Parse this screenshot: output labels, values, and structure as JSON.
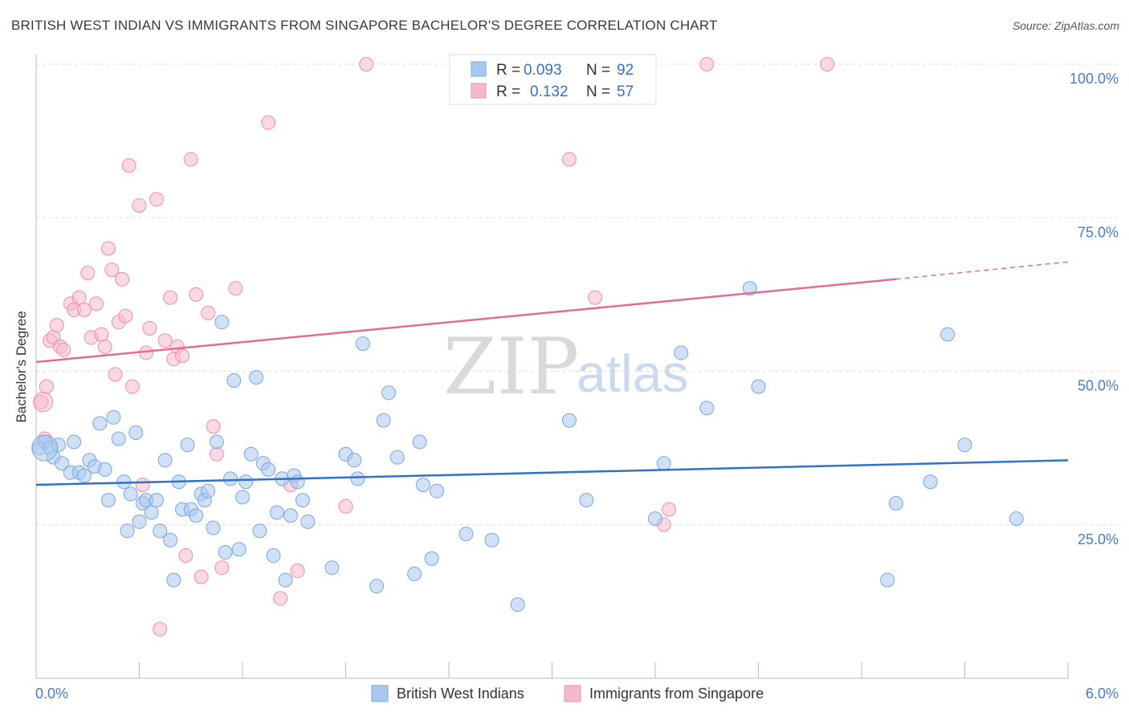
{
  "title": "BRITISH WEST INDIAN VS IMMIGRANTS FROM SINGAPORE BACHELOR'S DEGREE CORRELATION CHART",
  "source": "Source: ZipAtlas.com",
  "watermark": {
    "zip": "ZIP",
    "atlas": "atlas"
  },
  "colors": {
    "blue_fill": "#a9c8ee",
    "blue_stroke": "#7aa7e0",
    "blue_line": "#2f72c8",
    "pink_fill": "#f6b9cc",
    "pink_stroke": "#ee8fae",
    "pink_line": "#e36b94",
    "axis_text": "#4a7cc9",
    "grid": "#dddddd"
  },
  "legend": {
    "r_label": "R =",
    "n_label": "N =",
    "blue_r": "0.093",
    "blue_n": "92",
    "pink_r": "0.132",
    "pink_n": "57"
  },
  "chart_data": {
    "type": "scatter",
    "title": "BRITISH WEST INDIAN VS IMMIGRANTS FROM SINGAPORE BACHELOR'S DEGREE CORRELATION CHART",
    "xlabel": "",
    "ylabel": "Bachelor's Degree",
    "xlim": [
      0,
      6
    ],
    "ylim": [
      0,
      100
    ],
    "x_tick_labels": [
      "0.0%",
      "6.0%"
    ],
    "y_tick_labels": [
      "25.0%",
      "50.0%",
      "75.0%",
      "100.0%"
    ],
    "y_ticks": [
      25,
      50,
      75,
      100
    ],
    "grid": true,
    "legend_position": "top-center",
    "series": [
      {
        "name": "British West Indians",
        "color": "#a9c8ee",
        "trend": {
          "x": [
            0,
            6
          ],
          "y": [
            31.5,
            35.5
          ]
        },
        "points": [
          [
            0.02,
            37.5
          ],
          [
            0.05,
            38.5
          ],
          [
            0.08,
            37.5
          ],
          [
            0.1,
            36.0
          ],
          [
            0.13,
            38.0
          ],
          [
            0.15,
            35.0
          ],
          [
            0.2,
            33.5
          ],
          [
            0.22,
            38.5
          ],
          [
            0.25,
            33.5
          ],
          [
            0.28,
            33.0
          ],
          [
            0.31,
            35.5
          ],
          [
            0.34,
            34.5
          ],
          [
            0.37,
            41.5
          ],
          [
            0.4,
            34.0
          ],
          [
            0.42,
            29.0
          ],
          [
            0.45,
            42.5
          ],
          [
            0.48,
            39.0
          ],
          [
            0.51,
            32.0
          ],
          [
            0.53,
            24.0
          ],
          [
            0.55,
            30.0
          ],
          [
            0.58,
            40.0
          ],
          [
            0.6,
            25.5
          ],
          [
            0.62,
            28.5
          ],
          [
            0.64,
            29.0
          ],
          [
            0.67,
            27.0
          ],
          [
            0.7,
            29.0
          ],
          [
            0.72,
            24.0
          ],
          [
            0.75,
            35.5
          ],
          [
            0.78,
            22.5
          ],
          [
            0.8,
            16.0
          ],
          [
            0.83,
            32.0
          ],
          [
            0.85,
            27.5
          ],
          [
            0.88,
            38.0
          ],
          [
            0.9,
            27.5
          ],
          [
            0.93,
            26.5
          ],
          [
            0.96,
            30.0
          ],
          [
            0.98,
            29.0
          ],
          [
            1.0,
            30.5
          ],
          [
            1.03,
            24.5
          ],
          [
            1.05,
            38.5
          ],
          [
            1.08,
            58.0
          ],
          [
            1.1,
            20.5
          ],
          [
            1.13,
            32.5
          ],
          [
            1.15,
            48.5
          ],
          [
            1.18,
            21.0
          ],
          [
            1.2,
            29.5
          ],
          [
            1.22,
            32.0
          ],
          [
            1.25,
            36.5
          ],
          [
            1.28,
            49.0
          ],
          [
            1.3,
            24.0
          ],
          [
            1.32,
            35.0
          ],
          [
            1.35,
            34.0
          ],
          [
            1.38,
            20.0
          ],
          [
            1.4,
            27.0
          ],
          [
            1.43,
            32.5
          ],
          [
            1.45,
            16.0
          ],
          [
            1.48,
            26.5
          ],
          [
            1.5,
            33.0
          ],
          [
            1.52,
            32.0
          ],
          [
            1.55,
            29.0
          ],
          [
            1.58,
            25.5
          ],
          [
            1.72,
            18.0
          ],
          [
            1.8,
            36.5
          ],
          [
            1.85,
            35.5
          ],
          [
            1.87,
            32.5
          ],
          [
            1.9,
            54.5
          ],
          [
            1.98,
            15.0
          ],
          [
            2.02,
            42.0
          ],
          [
            2.05,
            46.5
          ],
          [
            2.1,
            36.0
          ],
          [
            2.2,
            17.0
          ],
          [
            2.23,
            38.5
          ],
          [
            2.25,
            31.5
          ],
          [
            2.3,
            19.5
          ],
          [
            2.33,
            30.5
          ],
          [
            2.5,
            23.5
          ],
          [
            2.65,
            22.5
          ],
          [
            2.8,
            12.0
          ],
          [
            3.1,
            42.0
          ],
          [
            3.2,
            29.0
          ],
          [
            3.6,
            26.0
          ],
          [
            3.65,
            35.0
          ],
          [
            3.75,
            53.0
          ],
          [
            3.9,
            44.0
          ],
          [
            4.15,
            63.5
          ],
          [
            4.2,
            47.5
          ],
          [
            4.95,
            16.0
          ],
          [
            5.0,
            28.5
          ],
          [
            5.2,
            32.0
          ],
          [
            5.3,
            56.0
          ],
          [
            5.4,
            38.0
          ],
          [
            5.7,
            26.0
          ]
        ]
      },
      {
        "name": "Immigrants from Singapore",
        "color": "#f6b9cc",
        "trend": {
          "x": [
            0,
            5
          ],
          "y": [
            51.5,
            65.0
          ],
          "dashed_to": {
            "x": 6,
            "y": 67.8
          }
        },
        "points": [
          [
            0.03,
            45.0
          ],
          [
            0.06,
            47.5
          ],
          [
            0.08,
            55.0
          ],
          [
            0.1,
            55.5
          ],
          [
            0.12,
            57.5
          ],
          [
            0.14,
            54.0
          ],
          [
            0.16,
            53.5
          ],
          [
            0.2,
            61.0
          ],
          [
            0.22,
            60.0
          ],
          [
            0.25,
            62.0
          ],
          [
            0.28,
            60.0
          ],
          [
            0.3,
            66.0
          ],
          [
            0.32,
            55.5
          ],
          [
            0.35,
            61.0
          ],
          [
            0.38,
            56.0
          ],
          [
            0.4,
            54.0
          ],
          [
            0.42,
            70.0
          ],
          [
            0.44,
            66.5
          ],
          [
            0.46,
            49.5
          ],
          [
            0.48,
            58.0
          ],
          [
            0.5,
            65.0
          ],
          [
            0.52,
            59.0
          ],
          [
            0.54,
            83.5
          ],
          [
            0.56,
            47.5
          ],
          [
            0.6,
            77.0
          ],
          [
            0.62,
            31.5
          ],
          [
            0.64,
            53.0
          ],
          [
            0.66,
            57.0
          ],
          [
            0.7,
            78.0
          ],
          [
            0.72,
            8.0
          ],
          [
            0.75,
            55.0
          ],
          [
            0.78,
            62.0
          ],
          [
            0.8,
            52.0
          ],
          [
            0.82,
            54.0
          ],
          [
            0.85,
            52.5
          ],
          [
            0.87,
            20.0
          ],
          [
            0.9,
            84.5
          ],
          [
            0.93,
            62.5
          ],
          [
            0.96,
            16.5
          ],
          [
            1.0,
            59.5
          ],
          [
            1.03,
            41.0
          ],
          [
            1.05,
            36.5
          ],
          [
            1.08,
            18.0
          ],
          [
            1.16,
            63.5
          ],
          [
            1.35,
            90.5
          ],
          [
            1.42,
            13.0
          ],
          [
            1.48,
            31.5
          ],
          [
            1.52,
            17.5
          ],
          [
            1.8,
            28.0
          ],
          [
            1.92,
            100.0
          ],
          [
            3.1,
            84.5
          ],
          [
            3.25,
            62.0
          ],
          [
            3.65,
            25.0
          ],
          [
            3.68,
            27.5
          ],
          [
            3.9,
            100.0
          ],
          [
            4.6,
            100.0
          ],
          [
            0.05,
            39.0
          ]
        ]
      }
    ]
  },
  "bottom_legend": {
    "blue_label": "British West Indians",
    "pink_label": "Immigrants from Singapore"
  }
}
